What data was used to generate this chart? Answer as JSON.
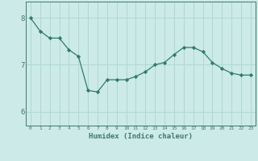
{
  "x": [
    0,
    1,
    2,
    3,
    4,
    5,
    6,
    7,
    8,
    9,
    10,
    11,
    12,
    13,
    14,
    15,
    16,
    17,
    18,
    19,
    20,
    21,
    22,
    23
  ],
  "y": [
    8.0,
    7.72,
    7.57,
    7.57,
    7.32,
    7.18,
    6.45,
    6.42,
    6.68,
    6.68,
    6.68,
    6.75,
    6.85,
    7.0,
    7.05,
    7.22,
    7.37,
    7.37,
    7.28,
    7.05,
    6.92,
    6.82,
    6.78,
    6.78
  ],
  "line_color": "#2e7d6e",
  "marker_color": "#2e7d6e",
  "bg_color": "#cceae7",
  "grid_color": "#afd8d4",
  "axis_color": "#3d7a70",
  "xlabel": "Humidex (Indice chaleur)",
  "ylim": [
    5.7,
    8.35
  ],
  "yticks": [
    6,
    7,
    8
  ],
  "xticks": [
    0,
    1,
    2,
    3,
    4,
    5,
    6,
    7,
    8,
    9,
    10,
    11,
    12,
    13,
    14,
    15,
    16,
    17,
    18,
    19,
    20,
    21,
    22,
    23
  ]
}
